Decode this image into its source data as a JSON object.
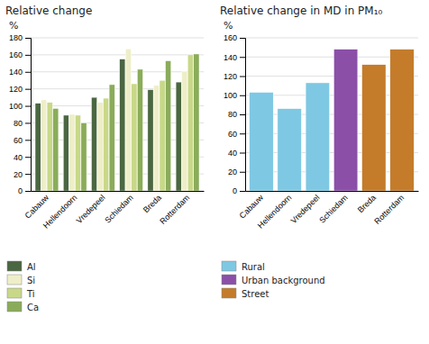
{
  "chart_data": [
    {
      "type": "bar",
      "title": "Relative change",
      "ylabel": "%",
      "categories": [
        "Cabauw",
        "Hellendoorn",
        "Vredepeel",
        "Schiedam",
        "Breda",
        "Rotterdam"
      ],
      "series": [
        {
          "name": "Al",
          "color": "#4a6741",
          "values": [
            103,
            89,
            110,
            155,
            119,
            128
          ]
        },
        {
          "name": "Si",
          "color": "#eeeec8",
          "values": [
            107,
            90,
            104,
            167,
            124,
            140
          ]
        },
        {
          "name": "Ti",
          "color": "#c8d888",
          "values": [
            104,
            89,
            109,
            126,
            130,
            160
          ]
        },
        {
          "name": "Ca",
          "color": "#8aac5a",
          "values": [
            97,
            80,
            125,
            143,
            153,
            161
          ]
        }
      ],
      "ylim": [
        0,
        180
      ],
      "yticks": [
        0,
        20,
        40,
        60,
        80,
        100,
        120,
        140,
        160,
        180
      ],
      "grid": true,
      "legend": "bottom"
    },
    {
      "type": "bar",
      "title": "Relative change in MD in PM₁₀",
      "ylabel": "%",
      "categories": [
        "Cabauw",
        "Hellendoorn",
        "Vredepeel",
        "Schiedam",
        "Breda",
        "Rotterdam"
      ],
      "series": [
        {
          "name": "Rural",
          "color": "#7ec8e3",
          "values": [
            103,
            86,
            113,
            null,
            null,
            null
          ]
        },
        {
          "name": "Urban background",
          "color": "#8b4fa8",
          "values": [
            null,
            null,
            null,
            148,
            null,
            null
          ]
        },
        {
          "name": "Street",
          "color": "#c47c2b",
          "values": [
            null,
            null,
            null,
            null,
            132,
            148
          ]
        }
      ],
      "stacked": true,
      "ylim": [
        0,
        160
      ],
      "yticks": [
        0,
        20,
        40,
        60,
        80,
        100,
        120,
        140,
        160
      ],
      "grid": true,
      "legend": "bottom"
    }
  ]
}
